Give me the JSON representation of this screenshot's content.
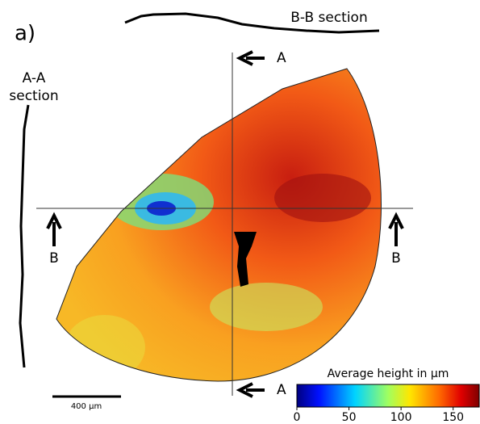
{
  "panel_label": "a)",
  "section_labels": {
    "aa": "A-A\nsection",
    "bb": "B-B section"
  },
  "cut_labels": {
    "a_top": "A",
    "a_bottom": "A",
    "b_left": "B",
    "b_right": "B"
  },
  "scale_bar": "400 µm",
  "colorbar": {
    "title": "Average height in µm",
    "lim": [
      0,
      175
    ],
    "ticks": [
      0,
      50,
      100,
      150
    ]
  }
}
